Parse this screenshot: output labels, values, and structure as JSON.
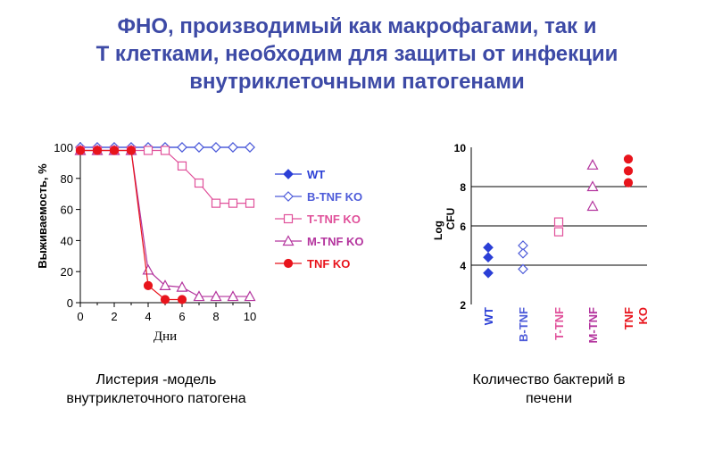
{
  "page": {
    "title_lines": [
      "ФНО, производимый как макрофагами, так и",
      "Т клетками, необходим для защиты от инфекции",
      "внутриклеточными патогенами"
    ],
    "caption_left_lines": [
      "Листерия -модель",
      "внутриклеточного патогена"
    ],
    "caption_right_lines": [
      "Количество бактерий в",
      "печени"
    ]
  },
  "chart_data": [
    {
      "type": "line",
      "xlabel": "Дни",
      "ylabel": "Выживаемость, %",
      "xlim": [
        0,
        10
      ],
      "ylim": [
        0,
        100
      ],
      "xticks": [
        0,
        2,
        4,
        6,
        8,
        10
      ],
      "yticks": [
        0,
        20,
        40,
        60,
        80,
        100
      ],
      "grid": false,
      "legend_position": "right",
      "series": [
        {
          "name": "WT",
          "color": "#2b3fd6",
          "marker": "diamond-filled",
          "x": [
            0,
            1,
            2,
            3,
            4,
            5,
            6,
            7,
            8,
            9,
            10
          ],
          "y": [
            100,
            100,
            100,
            100,
            100,
            100,
            100,
            100,
            100,
            100,
            100
          ]
        },
        {
          "name": "B-TNF KO",
          "color": "#4d5bd9",
          "marker": "diamond-open",
          "x": [
            0,
            1,
            2,
            3,
            4,
            5,
            6,
            7,
            8,
            9,
            10
          ],
          "y": [
            100,
            100,
            100,
            100,
            100,
            100,
            100,
            100,
            100,
            100,
            100
          ]
        },
        {
          "name": "T-TNF KO",
          "color": "#e0509a",
          "marker": "square-open",
          "x": [
            0,
            1,
            2,
            3,
            4,
            5,
            6,
            7,
            8,
            9,
            10
          ],
          "y": [
            98,
            98,
            98,
            98,
            98,
            98,
            88,
            77,
            64,
            64,
            64
          ]
        },
        {
          "name": "M-TNF KO",
          "color": "#b4359e",
          "marker": "triangle-open",
          "x": [
            0,
            1,
            2,
            3,
            4,
            5,
            6,
            7,
            8,
            9,
            10
          ],
          "y": [
            98,
            98,
            98,
            98,
            21,
            11,
            10,
            4,
            4,
            4,
            4
          ]
        },
        {
          "name": "TNF KO",
          "color": "#e8141c",
          "marker": "circle-filled",
          "x": [
            0,
            1,
            2,
            3,
            4,
            5,
            6
          ],
          "y": [
            98,
            98,
            98,
            98,
            11,
            2,
            2
          ]
        }
      ]
    },
    {
      "type": "scatter",
      "ylabel_lines": [
        "Log",
        "CFU"
      ],
      "ylim": [
        2,
        10
      ],
      "yticks": [
        2,
        4,
        6,
        8,
        10
      ],
      "gridlines": [
        4,
        6,
        8
      ],
      "categories": [
        {
          "label_lines": [
            "WT"
          ],
          "color": "#2b3fd6",
          "marker": "diamond-filled",
          "values": [
            4.9,
            4.4,
            3.6
          ]
        },
        {
          "label_lines": [
            "B-TNF"
          ],
          "color": "#4d5bd9",
          "marker": "diamond-open",
          "values": [
            5.0,
            4.6,
            3.8
          ]
        },
        {
          "label_lines": [
            "T-TNF"
          ],
          "color": "#e0509a",
          "marker": "square-open",
          "values": [
            6.2,
            5.7
          ]
        },
        {
          "label_lines": [
            "M-TNF"
          ],
          "color": "#b4359e",
          "marker": "triangle-open",
          "values": [
            9.1,
            8.0,
            7.0
          ]
        },
        {
          "label_lines": [
            "TNF",
            "KO"
          ],
          "color": "#e8141c",
          "marker": "circle-filled",
          "values": [
            9.4,
            8.8,
            8.2
          ]
        }
      ]
    }
  ]
}
